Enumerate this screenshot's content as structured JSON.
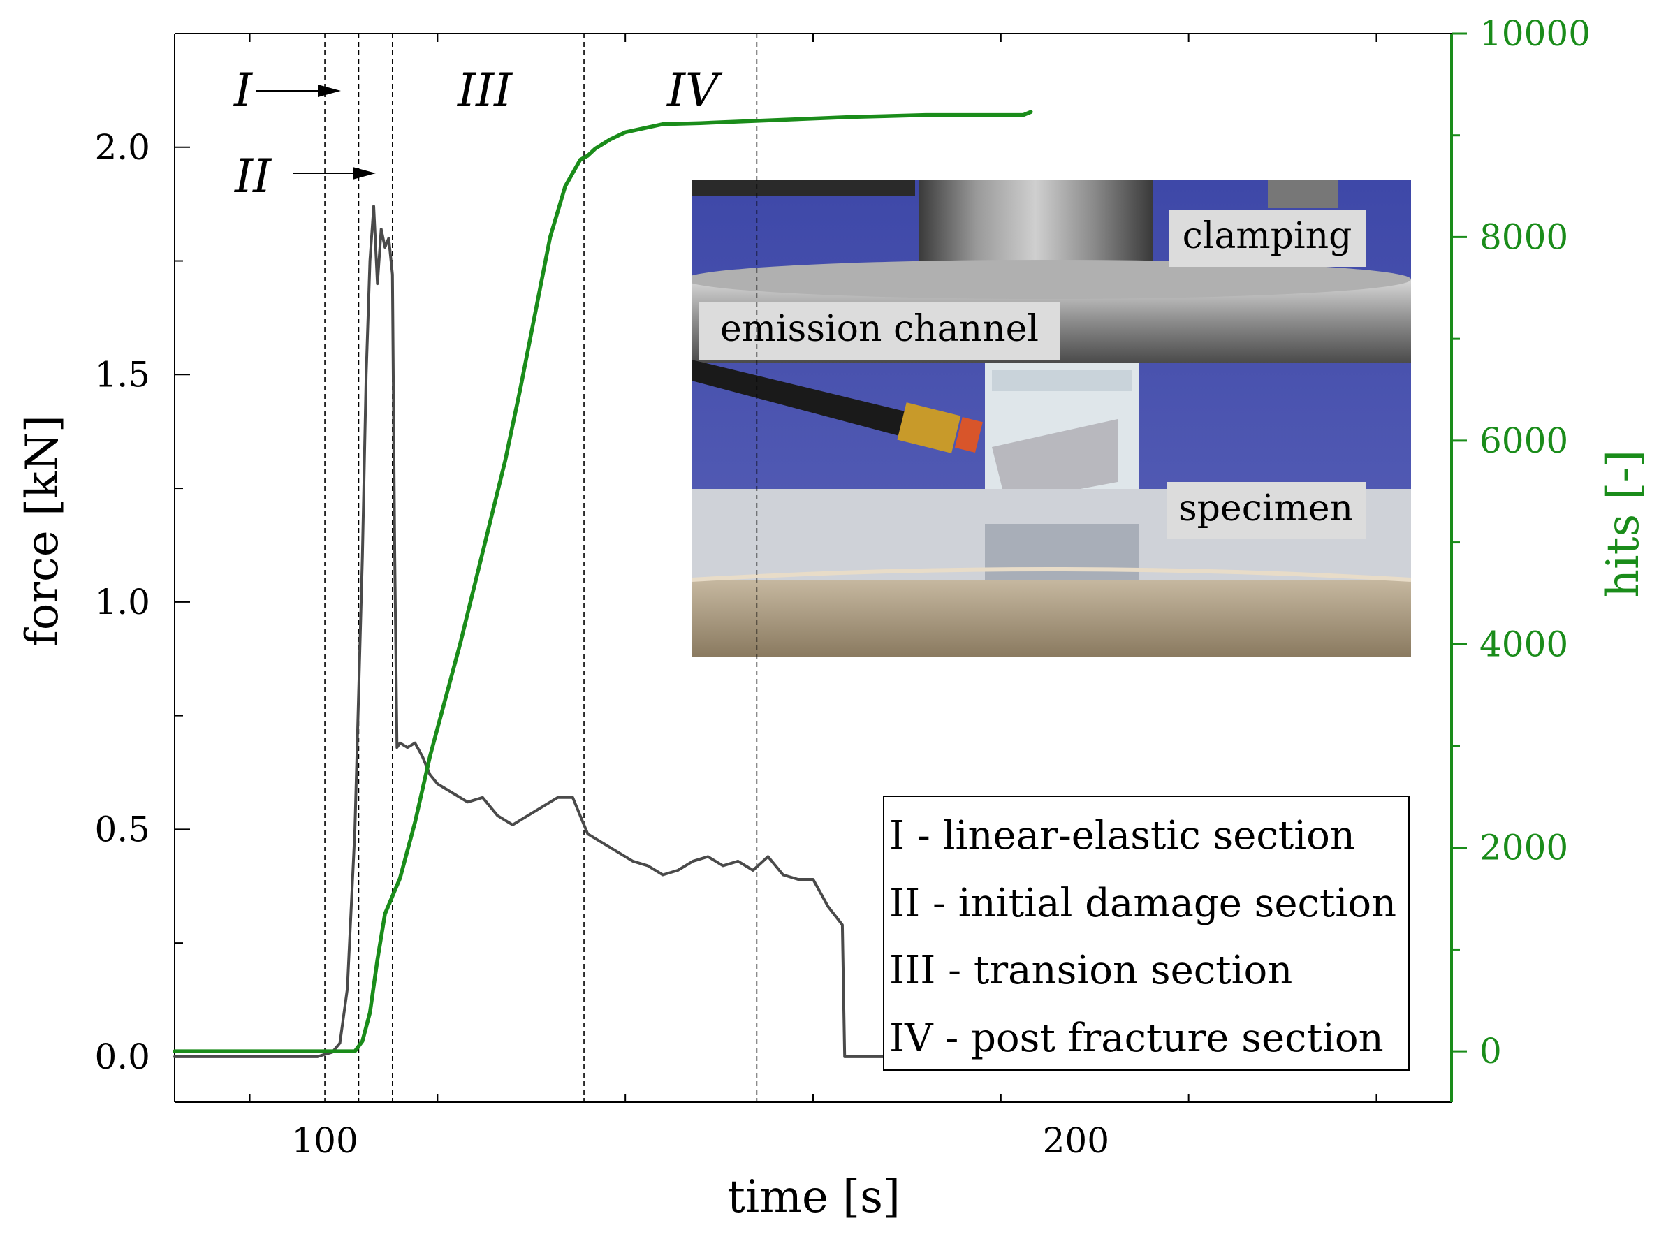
{
  "chart_data": {
    "type": "line",
    "xlabel": "time [s]",
    "ylabel_left": "force [kN]",
    "ylabel_right": "hits [-]",
    "xlim": [
      80,
      250
    ],
    "ylim_left": [
      -0.1,
      2.25
    ],
    "ylim_right": [
      -500,
      10000
    ],
    "x_ticks": [
      100,
      200
    ],
    "y_left_ticks": [
      "0.0",
      "0.5",
      "1.0",
      "1.5",
      "2.0"
    ],
    "y_right_ticks": [
      "0",
      "2000",
      "4000",
      "6000",
      "8000",
      "10000"
    ],
    "grid": false,
    "series": [
      {
        "axis": "left",
        "color": "#4a4a4a",
        "x": [
          80,
          99,
          100,
          101,
          102,
          103,
          104,
          105,
          105.5,
          106,
          106.5,
          107,
          107.5,
          108,
          108.5,
          109,
          109.3,
          109.6,
          110,
          111,
          112,
          113,
          114,
          115,
          117,
          119,
          121,
          123,
          125,
          127,
          129,
          131,
          133,
          135,
          137,
          139,
          141,
          143,
          145,
          147,
          149,
          151,
          153,
          155,
          157,
          159,
          161,
          163,
          165,
          167,
          168.9,
          169.2,
          172,
          180,
          190,
          197
        ],
        "y": [
          0,
          0,
          0.005,
          0.01,
          0.03,
          0.15,
          0.5,
          1.1,
          1.5,
          1.75,
          1.87,
          1.7,
          1.82,
          1.78,
          1.8,
          1.72,
          1.1,
          0.68,
          0.69,
          0.68,
          0.69,
          0.66,
          0.62,
          0.6,
          0.58,
          0.56,
          0.57,
          0.53,
          0.51,
          0.53,
          0.55,
          0.57,
          0.57,
          0.49,
          0.47,
          0.45,
          0.43,
          0.42,
          0.4,
          0.41,
          0.43,
          0.44,
          0.42,
          0.43,
          0.41,
          0.44,
          0.4,
          0.39,
          0.39,
          0.33,
          0.29,
          0.0,
          0,
          0,
          0,
          0
        ]
      },
      {
        "axis": "right",
        "color": "#1a8c1a",
        "x": [
          80,
          102,
          104,
          104.6,
          105,
          106,
          107,
          108,
          110,
          112,
          114,
          116,
          118,
          120,
          122,
          124,
          126,
          128,
          130,
          132,
          134,
          135,
          136,
          138,
          140,
          145,
          150,
          160,
          170,
          180,
          190,
          193,
          194
        ],
        "y": [
          0,
          0,
          0,
          60,
          100,
          380,
          900,
          1350,
          1700,
          2250,
          2900,
          3450,
          4000,
          4600,
          5200,
          5800,
          6500,
          7250,
          8000,
          8500,
          8760,
          8800,
          8870,
          8960,
          9030,
          9110,
          9120,
          9150,
          9180,
          9200,
          9200,
          9200,
          9230
        ]
      }
    ],
    "vlines": [
      100,
      104.5,
      109,
      134.5,
      157.5
    ],
    "annotations": [
      "I",
      "II",
      "III",
      "IV"
    ],
    "legend": {
      "placement": "bottom-right",
      "entries": [
        "I - linear-elastic section",
        "II - initial damage section",
        "III - transion section",
        "IV - post fracture section"
      ]
    },
    "inset_photo": {
      "placement": "upper-right",
      "labels": [
        "clamping",
        "emission channel",
        "specimen"
      ]
    }
  }
}
